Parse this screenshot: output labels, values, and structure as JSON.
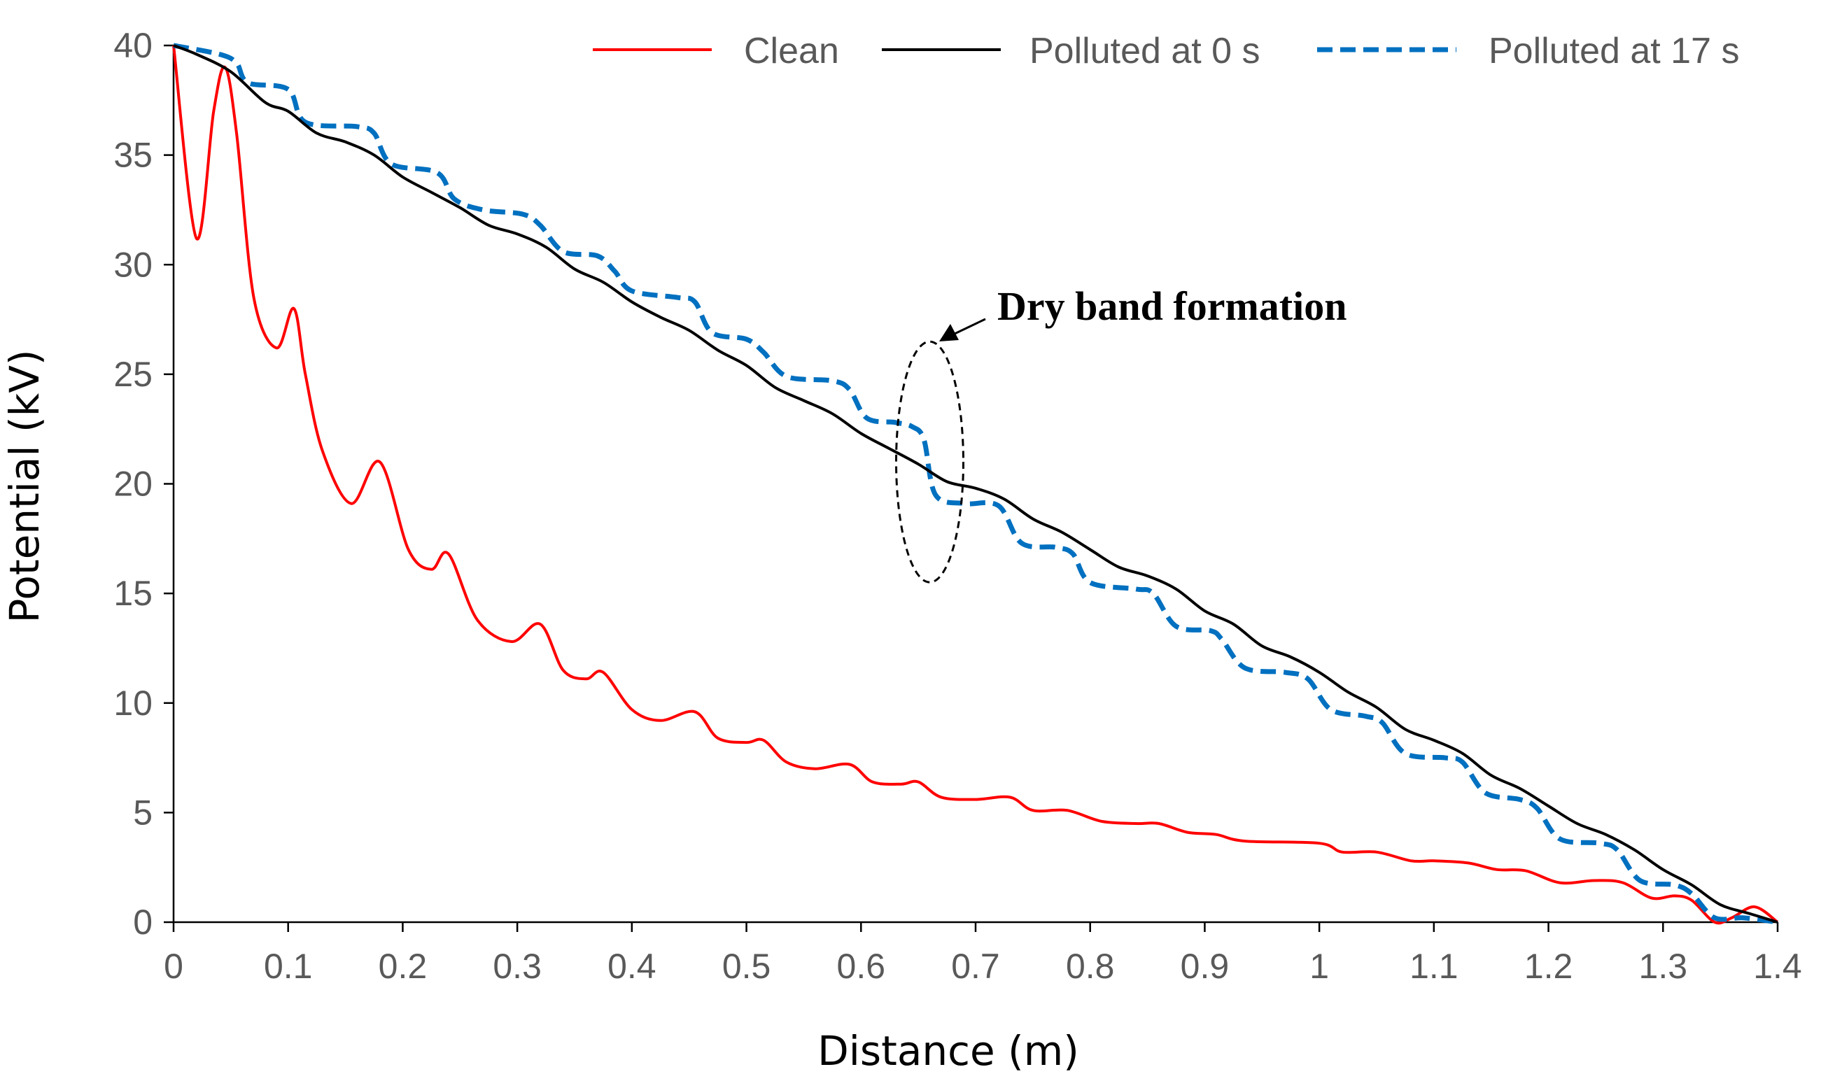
{
  "chart_data": {
    "type": "line",
    "title": "",
    "xlabel": "Distance (m)",
    "ylabel": "Potential (kV)",
    "xlim": [
      0,
      1.4
    ],
    "ylim": [
      0,
      40
    ],
    "xticks": [
      0,
      0.1,
      0.2,
      0.3,
      0.4,
      0.5,
      0.6,
      0.7,
      0.8,
      0.9,
      1,
      1.1,
      1.2,
      1.3,
      1.4
    ],
    "xtick_labels": [
      "0",
      "0.1",
      "0.2",
      "0.3",
      "0.4",
      "0.5",
      "0.6",
      "0.7",
      "0.8",
      "0.9",
      "1",
      "1.1",
      "1.2",
      "1.3",
      "1.4"
    ],
    "yticks": [
      0,
      5,
      10,
      15,
      20,
      25,
      30,
      35,
      40
    ],
    "ytick_labels": [
      "0",
      "5",
      "10",
      "15",
      "20",
      "25",
      "30",
      "35",
      "40"
    ],
    "grid": false,
    "legend_position": "top-right",
    "series": [
      {
        "name": "Clean",
        "color": "#ff0000",
        "style": "solid",
        "points": [
          [
            0,
            40
          ],
          [
            0.02,
            31.2
          ],
          [
            0.035,
            37
          ],
          [
            0.045,
            39
          ],
          [
            0.055,
            36
          ],
          [
            0.07,
            28.5
          ],
          [
            0.09,
            26.2
          ],
          [
            0.105,
            28
          ],
          [
            0.115,
            25
          ],
          [
            0.13,
            21.5
          ],
          [
            0.155,
            19.1
          ],
          [
            0.18,
            21
          ],
          [
            0.205,
            17
          ],
          [
            0.225,
            16.1
          ],
          [
            0.24,
            16.8
          ],
          [
            0.265,
            13.8
          ],
          [
            0.295,
            12.8
          ],
          [
            0.32,
            13.6
          ],
          [
            0.34,
            11.5
          ],
          [
            0.36,
            11.1
          ],
          [
            0.375,
            11.4
          ],
          [
            0.4,
            9.7
          ],
          [
            0.425,
            9.2
          ],
          [
            0.455,
            9.6
          ],
          [
            0.475,
            8.4
          ],
          [
            0.5,
            8.2
          ],
          [
            0.515,
            8.3
          ],
          [
            0.535,
            7.3
          ],
          [
            0.56,
            7.0
          ],
          [
            0.59,
            7.2
          ],
          [
            0.61,
            6.4
          ],
          [
            0.635,
            6.3
          ],
          [
            0.65,
            6.4
          ],
          [
            0.67,
            5.7
          ],
          [
            0.7,
            5.6
          ],
          [
            0.73,
            5.7
          ],
          [
            0.75,
            5.1
          ],
          [
            0.78,
            5.1
          ],
          [
            0.81,
            4.6
          ],
          [
            0.84,
            4.5
          ],
          [
            0.86,
            4.5
          ],
          [
            0.885,
            4.1
          ],
          [
            0.91,
            4.0
          ],
          [
            0.935,
            3.7
          ],
          [
            1.0,
            3.6
          ],
          [
            1.02,
            3.2
          ],
          [
            1.05,
            3.2
          ],
          [
            1.08,
            2.8
          ],
          [
            1.1,
            2.8
          ],
          [
            1.13,
            2.7
          ],
          [
            1.155,
            2.4
          ],
          [
            1.18,
            2.35
          ],
          [
            1.21,
            1.8
          ],
          [
            1.24,
            1.9
          ],
          [
            1.265,
            1.8
          ],
          [
            1.29,
            1.1
          ],
          [
            1.31,
            1.2
          ],
          [
            1.325,
            1.0
          ],
          [
            1.345,
            0.0
          ],
          [
            1.36,
            0.2
          ],
          [
            1.38,
            0.7
          ],
          [
            1.4,
            0.0
          ]
        ]
      },
      {
        "name": "Polluted at 0 s",
        "color": "#000000",
        "style": "solid",
        "points": [
          [
            0,
            40
          ],
          [
            0.02,
            39.6
          ],
          [
            0.05,
            38.8
          ],
          [
            0.08,
            37.4
          ],
          [
            0.1,
            37.0
          ],
          [
            0.125,
            36.0
          ],
          [
            0.15,
            35.6
          ],
          [
            0.175,
            35.0
          ],
          [
            0.2,
            34.0
          ],
          [
            0.225,
            33.3
          ],
          [
            0.25,
            32.6
          ],
          [
            0.275,
            31.8
          ],
          [
            0.3,
            31.4
          ],
          [
            0.325,
            30.8
          ],
          [
            0.35,
            29.8
          ],
          [
            0.375,
            29.2
          ],
          [
            0.4,
            28.3
          ],
          [
            0.425,
            27.6
          ],
          [
            0.45,
            27.0
          ],
          [
            0.475,
            26.1
          ],
          [
            0.5,
            25.4
          ],
          [
            0.525,
            24.4
          ],
          [
            0.55,
            23.8
          ],
          [
            0.575,
            23.2
          ],
          [
            0.6,
            22.3
          ],
          [
            0.625,
            21.6
          ],
          [
            0.65,
            20.9
          ],
          [
            0.675,
            20.1
          ],
          [
            0.7,
            19.8
          ],
          [
            0.725,
            19.3
          ],
          [
            0.75,
            18.4
          ],
          [
            0.775,
            17.8
          ],
          [
            0.8,
            17.0
          ],
          [
            0.825,
            16.2
          ],
          [
            0.85,
            15.8
          ],
          [
            0.875,
            15.2
          ],
          [
            0.9,
            14.2
          ],
          [
            0.925,
            13.6
          ],
          [
            0.95,
            12.6
          ],
          [
            0.975,
            12.1
          ],
          [
            1.0,
            11.4
          ],
          [
            1.025,
            10.5
          ],
          [
            1.05,
            9.8
          ],
          [
            1.075,
            8.8
          ],
          [
            1.1,
            8.3
          ],
          [
            1.125,
            7.7
          ],
          [
            1.15,
            6.7
          ],
          [
            1.175,
            6.1
          ],
          [
            1.2,
            5.3
          ],
          [
            1.225,
            4.5
          ],
          [
            1.25,
            4.0
          ],
          [
            1.275,
            3.3
          ],
          [
            1.3,
            2.4
          ],
          [
            1.325,
            1.7
          ],
          [
            1.35,
            0.8
          ],
          [
            1.375,
            0.4
          ],
          [
            1.4,
            0.0
          ]
        ]
      },
      {
        "name": "Polluted at 17 s",
        "color": "#0070c0",
        "style": "dashed",
        "points": [
          [
            0,
            40
          ],
          [
            0.04,
            39.6
          ],
          [
            0.055,
            39.2
          ],
          [
            0.065,
            38.3
          ],
          [
            0.1,
            38.0
          ],
          [
            0.115,
            36.5
          ],
          [
            0.16,
            36.3
          ],
          [
            0.175,
            36.0
          ],
          [
            0.19,
            34.6
          ],
          [
            0.23,
            34.2
          ],
          [
            0.245,
            33.0
          ],
          [
            0.27,
            32.5
          ],
          [
            0.305,
            32.3
          ],
          [
            0.32,
            31.8
          ],
          [
            0.34,
            30.6
          ],
          [
            0.37,
            30.4
          ],
          [
            0.385,
            29.7
          ],
          [
            0.4,
            28.8
          ],
          [
            0.44,
            28.5
          ],
          [
            0.455,
            28.3
          ],
          [
            0.47,
            26.9
          ],
          [
            0.5,
            26.6
          ],
          [
            0.515,
            26.0
          ],
          [
            0.535,
            24.9
          ],
          [
            0.575,
            24.7
          ],
          [
            0.59,
            24.3
          ],
          [
            0.605,
            23.0
          ],
          [
            0.63,
            22.8
          ],
          [
            0.645,
            22.6
          ],
          [
            0.655,
            22.0
          ],
          [
            0.665,
            19.5
          ],
          [
            0.69,
            19.1
          ],
          [
            0.72,
            19.0
          ],
          [
            0.74,
            17.3
          ],
          [
            0.77,
            17.1
          ],
          [
            0.785,
            16.8
          ],
          [
            0.8,
            15.5
          ],
          [
            0.84,
            15.2
          ],
          [
            0.855,
            15.0
          ],
          [
            0.875,
            13.5
          ],
          [
            0.905,
            13.3
          ],
          [
            0.915,
            12.9
          ],
          [
            0.935,
            11.6
          ],
          [
            0.97,
            11.4
          ],
          [
            0.99,
            11.1
          ],
          [
            1.01,
            9.7
          ],
          [
            1.04,
            9.4
          ],
          [
            1.055,
            9.1
          ],
          [
            1.075,
            7.7
          ],
          [
            1.11,
            7.5
          ],
          [
            1.125,
            7.3
          ],
          [
            1.145,
            5.9
          ],
          [
            1.175,
            5.6
          ],
          [
            1.19,
            5.2
          ],
          [
            1.21,
            3.8
          ],
          [
            1.245,
            3.6
          ],
          [
            1.26,
            3.3
          ],
          [
            1.28,
            1.9
          ],
          [
            1.31,
            1.7
          ],
          [
            1.325,
            1.3
          ],
          [
            1.345,
            0.2
          ],
          [
            1.37,
            0.2
          ],
          [
            1.4,
            0.0
          ]
        ]
      }
    ],
    "annotations": [
      {
        "text": "Dry band formation",
        "target_x": 0.66,
        "target_y": 21
      }
    ]
  }
}
